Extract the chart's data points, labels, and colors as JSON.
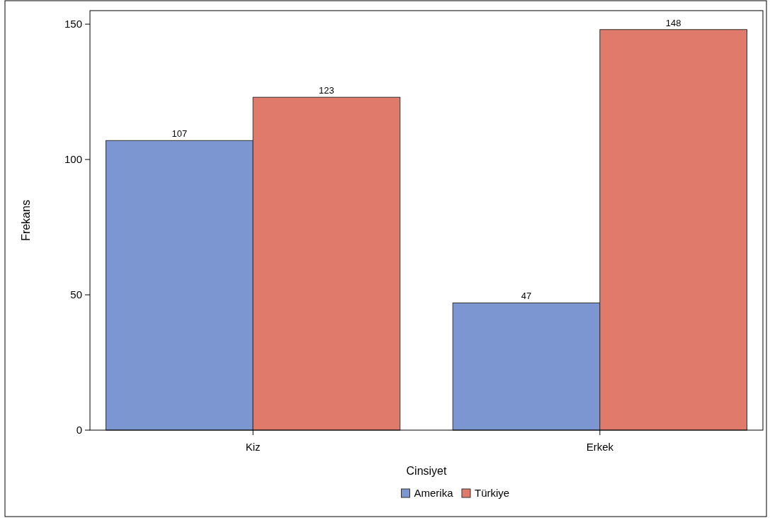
{
  "chart_data": {
    "type": "bar",
    "xlabel": "Cinsiyet",
    "ylabel": "Frekans",
    "categories": [
      "Kiz",
      "Erkek"
    ],
    "series": [
      {
        "name": "Amerika",
        "color": "#7b96d1",
        "values": [
          107,
          47
        ]
      },
      {
        "name": "Türkiye",
        "color": "#e07b6b",
        "values": [
          123,
          148
        ]
      }
    ],
    "ylim": [
      0,
      155
    ],
    "yticks": [
      0,
      50,
      100,
      150
    ],
    "data_labels": true,
    "legend": "bottom",
    "grid": false
  }
}
